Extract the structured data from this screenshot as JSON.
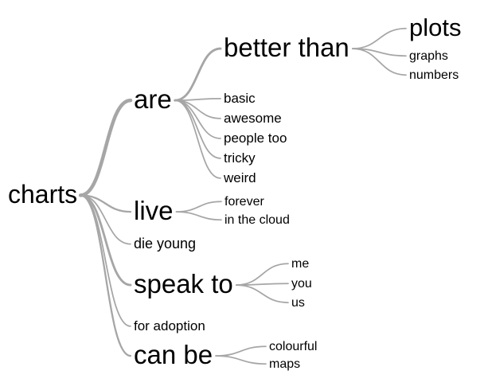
{
  "colors": {
    "link": "#a6a6a6",
    "text": "#000000",
    "background": "#ffffff"
  },
  "tree": {
    "root": "charts",
    "children": [
      {
        "label": "are",
        "children": [
          {
            "label": "better than",
            "children": [
              {
                "label": "plots"
              },
              {
                "label": "graphs"
              },
              {
                "label": "numbers"
              }
            ]
          },
          {
            "label": "basic"
          },
          {
            "label": "awesome"
          },
          {
            "label": "people too"
          },
          {
            "label": "tricky"
          },
          {
            "label": "weird"
          }
        ]
      },
      {
        "label": "live",
        "children": [
          {
            "label": "forever"
          },
          {
            "label": "in the cloud"
          }
        ]
      },
      {
        "label": "die young"
      },
      {
        "label": "speak to",
        "children": [
          {
            "label": "me"
          },
          {
            "label": "you"
          },
          {
            "label": "us"
          }
        ]
      },
      {
        "label": "for adoption"
      },
      {
        "label": "can be",
        "children": [
          {
            "label": "colourful"
          },
          {
            "label": "maps"
          }
        ]
      }
    ]
  }
}
